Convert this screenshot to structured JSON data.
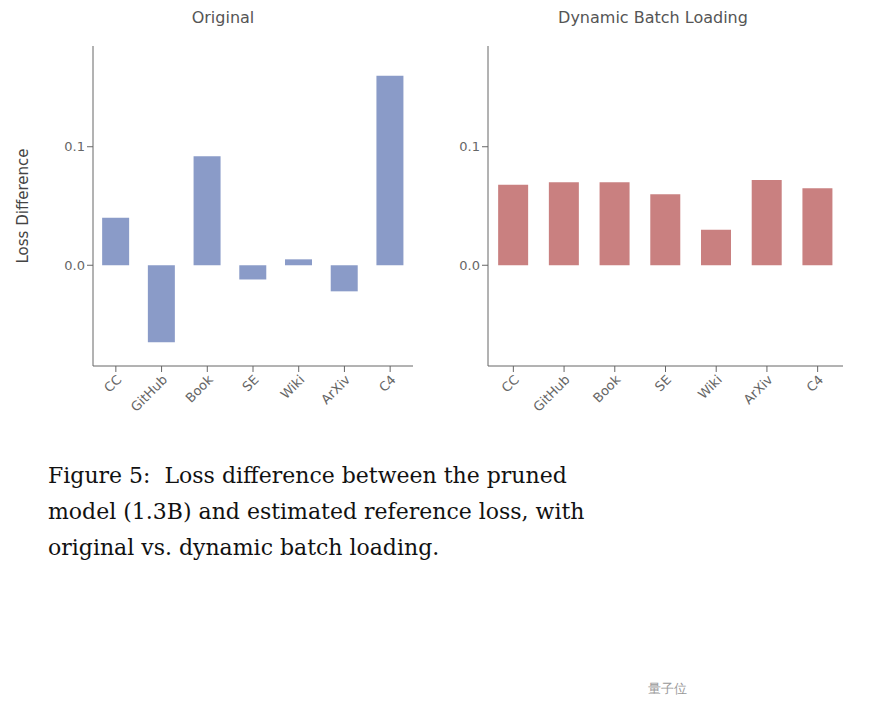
{
  "chart_data": [
    {
      "type": "bar",
      "title": "Original",
      "ylabel": "Loss Difference",
      "categories": [
        "CC",
        "GitHub",
        "Book",
        "SE",
        "Wiki",
        "ArXiv",
        "C4"
      ],
      "values": [
        0.04,
        -0.065,
        0.092,
        -0.012,
        0.005,
        -0.022,
        0.16
      ],
      "color": "#8A9BC8",
      "ylim": [
        -0.085,
        0.185
      ],
      "yticks": [
        {
          "value": 0.0,
          "label": "0.0"
        },
        {
          "value": 0.1,
          "label": "0.1"
        }
      ],
      "grid": false
    },
    {
      "type": "bar",
      "title": "Dynamic Batch Loading",
      "categories": [
        "CC",
        "GitHub",
        "Book",
        "SE",
        "Wiki",
        "ArXiv",
        "C4"
      ],
      "values": [
        0.068,
        0.07,
        0.07,
        0.06,
        0.03,
        0.072,
        0.065
      ],
      "color": "#C98080",
      "ylim": [
        -0.085,
        0.185
      ],
      "yticks": [
        {
          "value": 0.0,
          "label": "0.0"
        },
        {
          "value": 0.1,
          "label": "0.1"
        }
      ],
      "grid": false
    }
  ],
  "annotations": [
    "Figure 5:  Loss difference between the pruned",
    "model (1.3B) and estimated reference loss, with",
    "original vs. dynamic batch loading.",
    "量子位"
  ]
}
